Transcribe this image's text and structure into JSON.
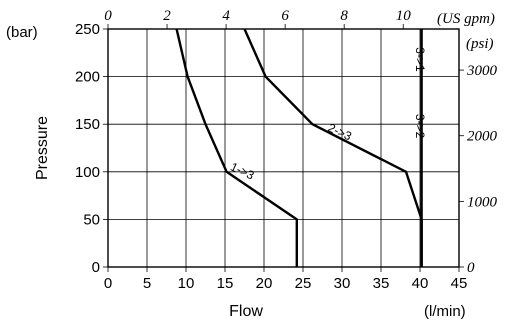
{
  "chart_data": {
    "type": "line",
    "xlabel": "Flow",
    "x_unit": "(l/min)",
    "ylabel": "Pressure",
    "y_unit": "(bar)",
    "xlim": [
      0,
      45
    ],
    "ylim": [
      0,
      250
    ],
    "x_ticks": [
      "0",
      "5",
      "10",
      "15",
      "20",
      "25",
      "30",
      "35",
      "40",
      "45"
    ],
    "y_ticks": [
      "0",
      "50",
      "100",
      "150",
      "200",
      "250"
    ],
    "secondary_x": {
      "unit": "(US gpm)",
      "ticks": [
        {
          "value": 0,
          "label": "0"
        },
        {
          "value": 2,
          "label": "2"
        },
        {
          "value": 4,
          "label": "4"
        },
        {
          "value": 6,
          "label": "6"
        },
        {
          "value": 8,
          "label": "8"
        },
        {
          "value": 10,
          "label": "10"
        }
      ],
      "factor_to_primary": 3.785
    },
    "secondary_y": {
      "unit": "(psi)",
      "ticks": [
        {
          "value": 0,
          "label": "0"
        },
        {
          "value": 1000,
          "label": "1000"
        },
        {
          "value": 2000,
          "label": "2000"
        },
        {
          "value": 3000,
          "label": "3000"
        }
      ],
      "factor_to_primary": 0.0689476
    },
    "grid": true,
    "series": [
      {
        "name": "1->3",
        "x": [
          8.8,
          10.2,
          12.5,
          15.2,
          24.2,
          24.2
        ],
        "y": [
          250,
          200,
          150,
          100,
          50,
          0
        ]
      },
      {
        "name": "2->3",
        "x": [
          17.5,
          20.2,
          26.2,
          38.2,
          40.2,
          40.2
        ],
        "y": [
          250,
          200,
          150,
          100,
          50,
          0
        ]
      },
      {
        "name": "3->2",
        "x": [
          40.2,
          40.2
        ],
        "y": [
          0,
          250
        ]
      }
    ],
    "labels": [
      {
        "text": "1->3",
        "x": 17.0,
        "y": 97
      },
      {
        "text": "2->3",
        "x": 29.5,
        "y": 138
      },
      {
        "text": "3->1",
        "x": 39.5,
        "y": 218
      },
      {
        "text": "3->2",
        "x": 39.5,
        "y": 148
      }
    ]
  }
}
